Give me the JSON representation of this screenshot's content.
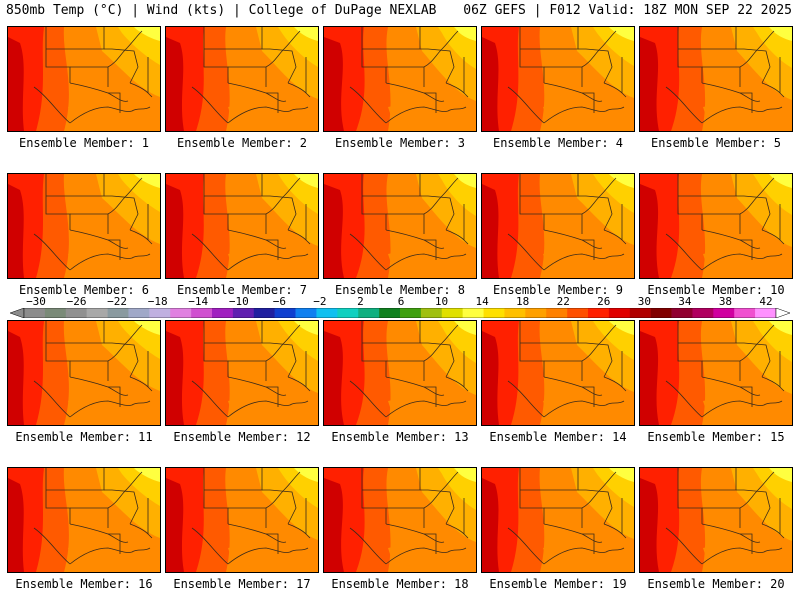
{
  "header": {
    "left_title": "850mb Temp (°C) | Wind (kts) | College of DuPage NEXLAB",
    "right_title": "06Z GEFS | F012 Valid: 18Z MON SEP 22 2025"
  },
  "members": [
    {
      "label": "Ensemble Member: 1"
    },
    {
      "label": "Ensemble Member: 2"
    },
    {
      "label": "Ensemble Member: 3"
    },
    {
      "label": "Ensemble Member: 4"
    },
    {
      "label": "Ensemble Member: 5"
    },
    {
      "label": "Ensemble Member: 6"
    },
    {
      "label": "Ensemble Member: 7"
    },
    {
      "label": "Ensemble Member: 8"
    },
    {
      "label": "Ensemble Member: 9"
    },
    {
      "label": "Ensemble Member: 10"
    },
    {
      "label": "Ensemble Member: 11"
    },
    {
      "label": "Ensemble Member: 12"
    },
    {
      "label": "Ensemble Member: 13"
    },
    {
      "label": "Ensemble Member: 14"
    },
    {
      "label": "Ensemble Member: 15"
    },
    {
      "label": "Ensemble Member: 16"
    },
    {
      "label": "Ensemble Member: 17"
    },
    {
      "label": "Ensemble Member: 18"
    },
    {
      "label": "Ensemble Member: 19"
    },
    {
      "label": "Ensemble Member: 20"
    }
  ],
  "colorbar": {
    "labels": [
      "−30",
      "−26",
      "−22",
      "−18",
      "−14",
      "−10",
      "−6",
      "−2",
      "2",
      "6",
      "10",
      "14",
      "18",
      "22",
      "26",
      "30",
      "34",
      "38",
      "42"
    ],
    "colors": [
      "#8c8c8c",
      "#7a8a78",
      "#909090",
      "#a8a8a8",
      "#8a9aa0",
      "#a0a8c8",
      "#c0b0e0",
      "#e080e0",
      "#d050d0",
      "#a020c0",
      "#6020b0",
      "#2020a0",
      "#1040d0",
      "#1080f0",
      "#10c0f0",
      "#10d0c0",
      "#10b080",
      "#108020",
      "#40a010",
      "#a0c010",
      "#e0e000",
      "#ffff40",
      "#ffe000",
      "#ffc000",
      "#ffa000",
      "#ff8000",
      "#ff5000",
      "#ff2000",
      "#e00000",
      "#b00000",
      "#800000",
      "#900030",
      "#b00060",
      "#d000a0",
      "#f050d0",
      "#ff90ff"
    ]
  },
  "field_colors": {
    "yellow": "#ffff40",
    "gold": "#ffd000",
    "amber": "#ffb000",
    "orange": "#ff8a00",
    "dark_orange": "#ff5a00",
    "red": "#ff2000",
    "deep_red": "#d00000"
  }
}
